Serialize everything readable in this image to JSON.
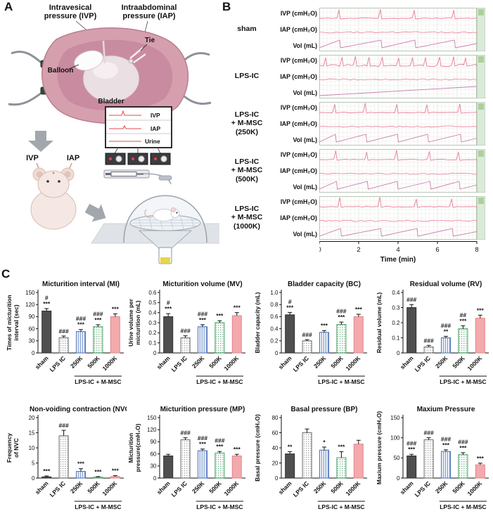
{
  "panel_a": {
    "label": "A",
    "ivp_label_line1": "Intravesical",
    "ivp_label_line2": "pressure (IVP)",
    "iap_label_line1": "Intraabdominal",
    "iap_label_line2": "pressure (IAP)",
    "balloon_label": "Balloon",
    "tie_label": "Tie",
    "bladder_label": "Bladder",
    "ivp_short": "IVP",
    "iap_short": "IAP",
    "monitor_labels": [
      "IVP",
      "IAP",
      "Urine"
    ]
  },
  "panel_b": {
    "label": "B",
    "signal_labels": [
      "IVP (cmH₂O)",
      "IAP (cmH₂O)",
      "Vol (mL)"
    ],
    "groups": [
      {
        "label_lines": [
          "sham"
        ],
        "ivp_spikes": 4,
        "noisy": false
      },
      {
        "label_lines": [
          "LPS-IC"
        ],
        "ivp_spikes": 11,
        "noisy": true
      },
      {
        "label_lines": [
          "LPS-IC",
          "+ M-MSC",
          "(250K)"
        ],
        "ivp_spikes": 5,
        "noisy": false
      },
      {
        "label_lines": [
          "LPS-IC",
          "+ M-MSC",
          "(500K)"
        ],
        "ivp_spikes": 5,
        "noisy": false
      },
      {
        "label_lines": [
          "LPS-IC",
          "+ M-MSC",
          "(1000K)"
        ],
        "ivp_spikes": 4,
        "noisy": false
      }
    ],
    "x_ticks": [
      "0",
      "2",
      "4",
      "6",
      "8"
    ],
    "xlabel": "Time (min)",
    "trace_color": "#e87d97",
    "volume_color": "#c97fae"
  },
  "panel_c": {
    "label": "C"
  },
  "bar_styles": [
    {
      "type": "solid",
      "fill": "#4f4f4f",
      "stroke": "#2e2e2e"
    },
    {
      "type": "dots",
      "dot": "#8a8a8a",
      "stroke": "#6a6a6a"
    },
    {
      "type": "vstripes",
      "stripe": "#5b7fc4",
      "stroke": "#4a6fb5"
    },
    {
      "type": "dots",
      "dot": "#4aa06a",
      "stroke": "#3f9e5f"
    },
    {
      "type": "solid",
      "fill": "#f4a9ac",
      "stroke": "#e0888c"
    }
  ],
  "chart_data": [
    {
      "type": "bar",
      "title": "Micturition interval (MI)",
      "ylabel_lines": [
        "Times of micturition",
        "interval (sec)"
      ],
      "ylim": [
        0,
        150
      ],
      "yticks": [
        "0",
        "30",
        "60",
        "90",
        "120",
        "150"
      ],
      "categories": [
        "sham",
        "LPS IC",
        "250K",
        "500K",
        "1000K"
      ],
      "values": [
        104,
        38,
        53,
        65,
        90
      ],
      "errors": [
        6,
        4,
        5,
        5,
        7
      ],
      "sig": [
        [
          "#",
          "***"
        ],
        [
          "###"
        ],
        [
          "###",
          "***"
        ],
        [
          "###",
          "***"
        ],
        [
          "***"
        ]
      ],
      "xgroup": "LPS-IC + M-MSC"
    },
    {
      "type": "bar",
      "title": "Micturition volume (MV)",
      "ylabel_lines": [
        "Urine volume per",
        "micturition (mL)"
      ],
      "ylim": [
        0,
        0.6
      ],
      "yticks": [
        "0",
        "0.1",
        "0.2",
        "0.3",
        "0.4",
        "0.5",
        "0.6"
      ],
      "categories": [
        "sham",
        "LPS IC",
        "250K",
        "500K",
        "1000K"
      ],
      "values": [
        0.36,
        0.15,
        0.26,
        0.3,
        0.37
      ],
      "errors": [
        0.03,
        0.02,
        0.02,
        0.02,
        0.03
      ],
      "sig": [
        [
          "#",
          "***"
        ],
        [
          "###"
        ],
        [
          "###",
          "***"
        ],
        [
          "***"
        ],
        [
          "***"
        ]
      ],
      "xgroup": "LPS-IC + M-MSC"
    },
    {
      "type": "bar",
      "title": "Bladder capacity (BC)",
      "ylabel_lines": [
        "Bladder capacity (mL)"
      ],
      "ylim": [
        0,
        1.0
      ],
      "yticks": [
        "0",
        "0.2",
        "0.4",
        "0.6",
        "0.8",
        "1.0"
      ],
      "categories": [
        "sham",
        "LPS IC",
        "250K",
        "500K",
        "1000K"
      ],
      "values": [
        0.63,
        0.2,
        0.34,
        0.47,
        0.6
      ],
      "errors": [
        0.04,
        0.02,
        0.03,
        0.04,
        0.04
      ],
      "sig": [
        [
          "#",
          "***"
        ],
        [
          "###"
        ],
        [
          "***"
        ],
        [
          "###",
          "***"
        ],
        [
          "***"
        ]
      ],
      "xgroup": "LPS-IC + M-MSC"
    },
    {
      "type": "bar",
      "title": "Residual volume (RV)",
      "ylabel_lines": [
        "Residual volume (mL)"
      ],
      "ylim": [
        0,
        0.4
      ],
      "yticks": [
        "0",
        "0.1",
        "0.2",
        "0.3",
        "0.4"
      ],
      "categories": [
        "sham",
        "LPS IC",
        "250K",
        "500K",
        "1000K"
      ],
      "values": [
        0.3,
        0.04,
        0.1,
        0.16,
        0.23
      ],
      "errors": [
        0.02,
        0.01,
        0.01,
        0.02,
        0.02
      ],
      "sig": [
        [
          "###"
        ],
        [
          "###"
        ],
        [
          "###",
          "**"
        ],
        [
          "##",
          "***"
        ],
        [
          "***"
        ]
      ],
      "xgroup": "LPS-IC + M-MSC"
    },
    {
      "type": "bar",
      "title": "Non-voiding contraction (NVC)",
      "ylabel_lines": [
        "Frequency",
        "of NVC"
      ],
      "ylim": [
        0,
        20
      ],
      "yticks": [
        "0",
        "5",
        "10",
        "15",
        "20"
      ],
      "categories": [
        "sham",
        "LPS IC",
        "250K",
        "500K",
        "1000K"
      ],
      "values": [
        0.4,
        14,
        2.2,
        0.3,
        0.5
      ],
      "errors": [
        0.3,
        1.8,
        0.9,
        0.2,
        0.3
      ],
      "sig": [
        [
          "***"
        ],
        [
          "###"
        ],
        [
          "***"
        ],
        [
          "***"
        ],
        [
          "***"
        ]
      ],
      "xgroup": "LPS-IC + M-MSC"
    },
    {
      "type": "bar",
      "title": "Micturition pressure (MP)",
      "ylabel_lines": [
        "Micturition",
        "pressure(cmH₂O)"
      ],
      "ylim": [
        0,
        150
      ],
      "yticks": [
        "0",
        "30",
        "60",
        "90",
        "120",
        "150"
      ],
      "categories": [
        "sham",
        "LPS IC",
        "250K",
        "500K",
        "1000K"
      ],
      "values": [
        55,
        95,
        68,
        62,
        55
      ],
      "errors": [
        4,
        5,
        4,
        4,
        4
      ],
      "sig": [
        [],
        [
          "###"
        ],
        [
          "###",
          "***"
        ],
        [
          "###",
          "***"
        ],
        [
          "***"
        ]
      ],
      "xgroup": "LPS-IC + M-MSC"
    },
    {
      "type": "bar",
      "title": "Basal pressure (BP)",
      "ylabel_lines": [
        "Basal pressure (cmH₂O)"
      ],
      "ylim": [
        0,
        80
      ],
      "yticks": [
        "0",
        "20",
        "40",
        "60",
        "80"
      ],
      "categories": [
        "sham",
        "LPS IC",
        "250K",
        "500K",
        "1000K"
      ],
      "values": [
        32,
        60,
        37,
        27,
        45
      ],
      "errors": [
        3,
        5,
        4,
        8,
        5
      ],
      "sig": [
        [
          "**"
        ],
        [],
        [
          "*"
        ],
        [
          "***"
        ],
        []
      ],
      "xgroup": "LPS-IC + M-MSC"
    },
    {
      "type": "bar",
      "title": "Maxium Pressure",
      "ylabel_lines": [
        "Maxium pressure (cmH₂O)"
      ],
      "ylim": [
        0,
        150
      ],
      "yticks": [
        "0",
        "50",
        "100",
        "150"
      ],
      "categories": [
        "sham",
        "LPS IC",
        "250K",
        "500K",
        "1000K"
      ],
      "values": [
        55,
        95,
        66,
        58,
        33
      ],
      "errors": [
        4,
        5,
        4,
        5,
        4
      ],
      "sig": [
        [
          "###",
          "***"
        ],
        [
          "###"
        ],
        [
          "###",
          "***"
        ],
        [
          "###",
          "***"
        ],
        [
          "***"
        ]
      ],
      "xgroup": "LPS-IC + M-MSC"
    }
  ]
}
